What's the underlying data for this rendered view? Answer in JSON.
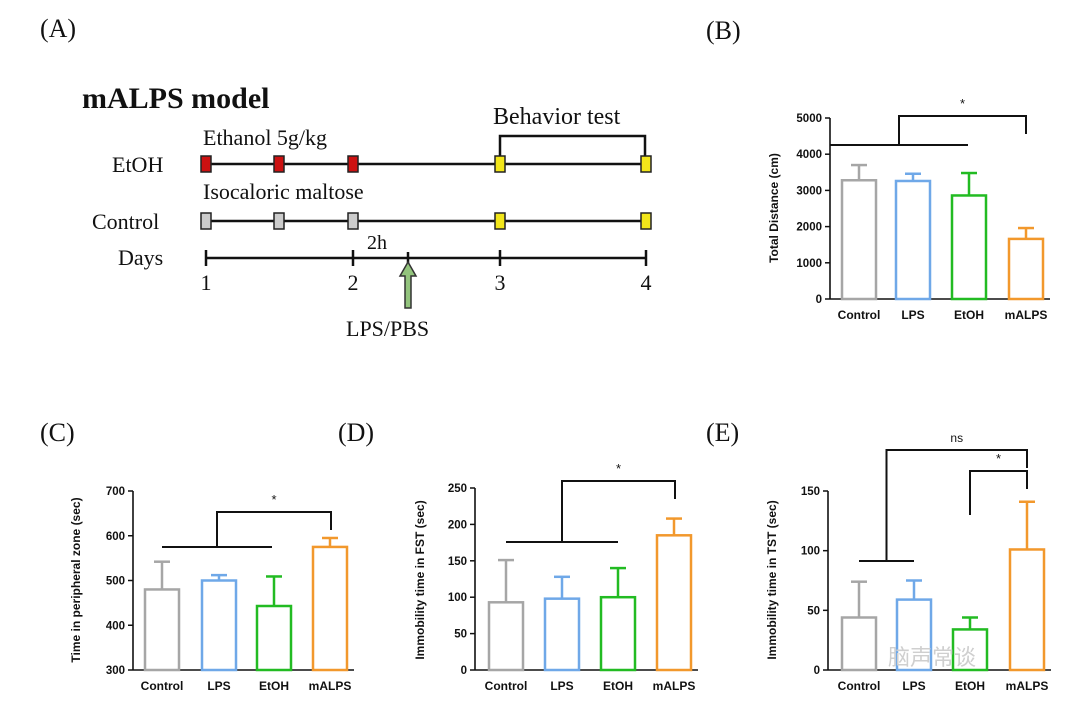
{
  "panel_labels": {
    "a": "(A)",
    "b": "(B)",
    "c": "(C)",
    "d": "(D)",
    "e": "(E)"
  },
  "schematic": {
    "title": "mALPS model",
    "etoh_row_label": "EtOH",
    "etoh_treatment": "Ethanol 5g/kg",
    "control_row_label": "Control",
    "control_treatment": "Isocaloric maltose",
    "days_label": "Days",
    "day_ticks": [
      "1",
      "2",
      "3",
      "4"
    ],
    "interval_label": "2h",
    "injection_label": "LPS/PBS",
    "behavior_label": "Behavior test"
  },
  "colors": {
    "control": "#a6a6a6",
    "lps": "#6fa8e8",
    "etoh": "#22bb22",
    "malps": "#f2982c",
    "etoh_marker": "#cc1111",
    "control_marker": "#cccccc",
    "behavior_marker": "#f2e61a",
    "arrow": "#93c47d"
  },
  "chart_data": [
    {
      "id": "B",
      "type": "bar",
      "title": "",
      "ylabel": "Total Distance (cm)",
      "categories": [
        "Control",
        "LPS",
        "EtOH",
        "mALPS"
      ],
      "values": [
        3280,
        3260,
        2860,
        1660
      ],
      "errors": [
        420,
        200,
        620,
        300
      ],
      "ylim": [
        0,
        5000
      ],
      "yticks": [
        0,
        1000,
        2000,
        3000,
        4000,
        5000
      ],
      "annotations": [
        {
          "text": "*",
          "compare": "Control/LPS/EtOH vs mALPS"
        }
      ]
    },
    {
      "id": "C",
      "type": "bar",
      "title": "",
      "ylabel": "Time in peripheral zone (sec)",
      "categories": [
        "Control",
        "LPS",
        "EtOH",
        "mALPS"
      ],
      "values": [
        480,
        500,
        443,
        575
      ],
      "errors": [
        62,
        12,
        66,
        20
      ],
      "ylim": [
        300,
        700
      ],
      "yticks": [
        300,
        400,
        500,
        600,
        700
      ],
      "annotations": [
        {
          "text": "*",
          "compare": "Control/LPS/EtOH vs mALPS"
        }
      ]
    },
    {
      "id": "D",
      "type": "bar",
      "title": "",
      "ylabel": "Immobility time in  FST (sec)",
      "categories": [
        "Control",
        "LPS",
        "EtOH",
        "mALPS"
      ],
      "values": [
        93,
        98,
        100,
        185
      ],
      "errors": [
        58,
        30,
        40,
        23
      ],
      "ylim": [
        0,
        250
      ],
      "yticks": [
        0,
        50,
        100,
        150,
        200,
        250
      ],
      "annotations": [
        {
          "text": "*",
          "compare": "Control/LPS/EtOH vs mALPS"
        }
      ]
    },
    {
      "id": "E",
      "type": "bar",
      "title": "",
      "ylabel": "Immobility time in  TST (sec)",
      "categories": [
        "Control",
        "LPS",
        "EtOH",
        "mALPS"
      ],
      "values": [
        44,
        59,
        34,
        101
      ],
      "errors": [
        30,
        16,
        10,
        40
      ],
      "ylim": [
        0,
        150
      ],
      "yticks": [
        0,
        50,
        100,
        150
      ],
      "annotations": [
        {
          "text": "ns",
          "compare": "Control/LPS vs mALPS"
        },
        {
          "text": "*",
          "compare": "EtOH vs mALPS"
        }
      ]
    }
  ],
  "watermark": "脑声常谈"
}
